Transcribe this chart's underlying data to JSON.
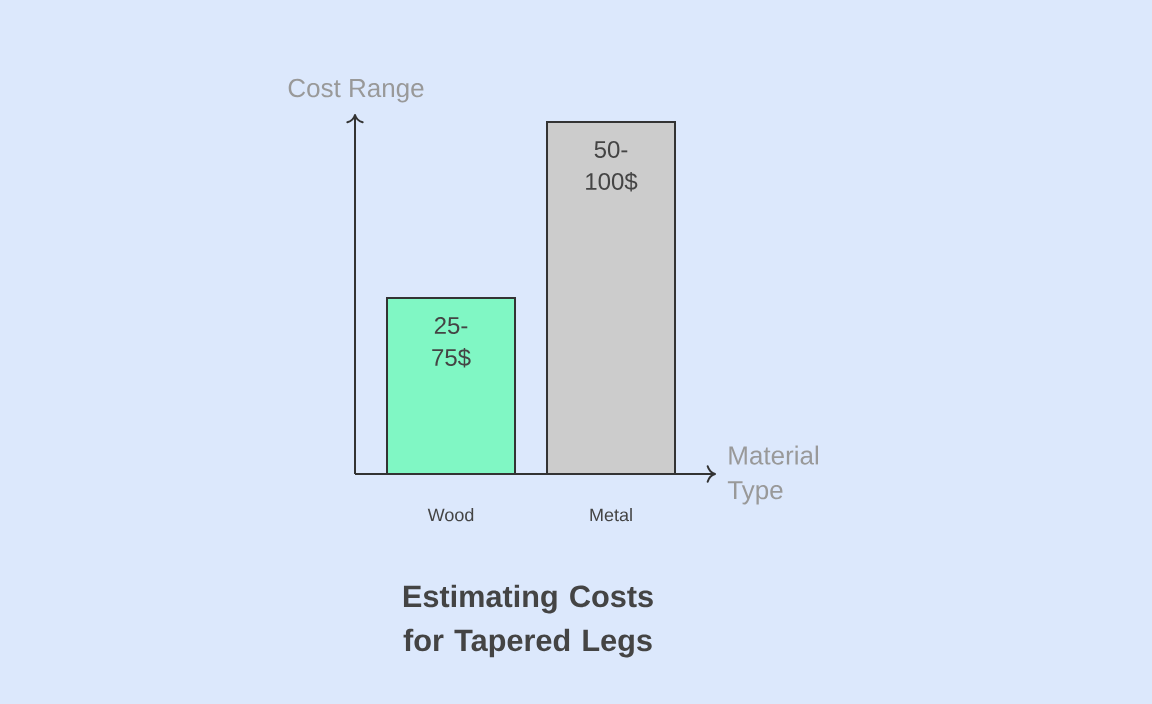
{
  "chart_data": {
    "type": "bar",
    "title": "Estimating Costs for Tapered Legs",
    "xlabel": "Material Type",
    "ylabel": "Cost Range",
    "categories": [
      "Wood",
      "Metal"
    ],
    "values": [
      25,
      50
    ],
    "colors": [
      "#80f7c4",
      "#cccccc"
    ],
    "ylim": [
      0,
      51
    ],
    "tick_labels": "x",
    "value_labels": [
      "25-75$",
      "50-100$"
    ]
  }
}
